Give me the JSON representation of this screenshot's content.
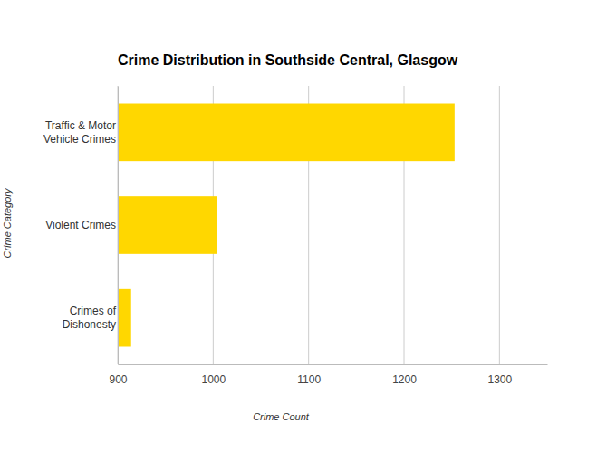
{
  "chart_data": {
    "type": "bar",
    "title": "Crime Distribution in Southside Central, Glasgow",
    "orientation": "horizontal",
    "x_label": "Crime Count",
    "y_label": "Crime Category",
    "categories": [
      "Traffic & Motor Vehicle Crimes",
      "Violent Crimes",
      "Crimes of Dishonesty"
    ],
    "values": [
      1253,
      1004,
      914
    ],
    "color": "#FFD700",
    "xlim": [
      900,
      1350
    ],
    "xticks": [
      900,
      1000,
      1100,
      1200,
      1300
    ],
    "grid": true
  }
}
